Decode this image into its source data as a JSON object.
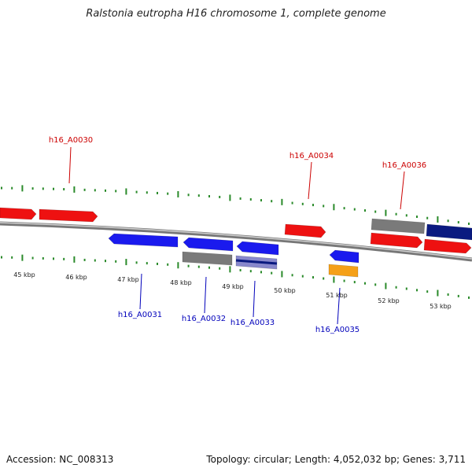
{
  "title": "Ralstonia eutropha H16 chromosome 1, complete genome",
  "footer": {
    "accession": "Accession: NC_008313",
    "summary": "Topology: circular; Length: 4,052,032 bp; Genes: 3,711"
  },
  "colors": {
    "forward": "#ee1111",
    "reverse": "#1a1aee",
    "gray": "#7a7a7a",
    "navy": "#0a1a80",
    "orange": "#f5a018",
    "lavender": "#8888cc",
    "tick": "#2a8a2a",
    "backbone": "#888888",
    "label_forward": "#cc0000",
    "label_reverse": "#0000bb"
  },
  "scale": {
    "ticks": [
      "45 kbp",
      "46 kbp",
      "47 kbp",
      "48 kbp",
      "49 kbp",
      "50 kbp",
      "51 kbp",
      "52 kbp",
      "53 kbp"
    ]
  },
  "gene_labels": {
    "forward": [
      "h16_A0030",
      "h16_A0034",
      "h16_A0036"
    ],
    "reverse": [
      "h16_A0031",
      "h16_A0032",
      "h16_A0033",
      "h16_A0035"
    ]
  }
}
